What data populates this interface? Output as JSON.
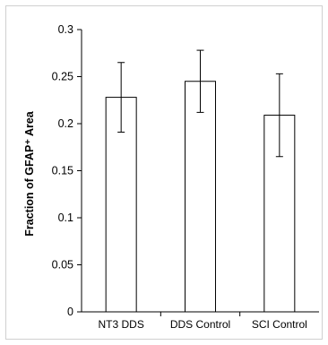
{
  "chart_data": {
    "type": "bar",
    "ylabel": "Fraction of GFAP⁺ Area",
    "ylim": [
      0,
      0.3
    ],
    "yticks": [
      0,
      0.05,
      0.1,
      0.15,
      0.2,
      0.25,
      0.3
    ],
    "ytick_labels": [
      "0",
      "0.05",
      "0.1",
      "0.15",
      "0.2",
      "0.25",
      "0.3"
    ],
    "categories": [
      "NT3 DDS",
      "DDS Control",
      "SCI Control"
    ],
    "values": [
      0.228,
      0.245,
      0.209
    ],
    "errors": [
      0.037,
      0.033,
      0.044
    ],
    "bar_color": "#ffffff",
    "edge_color": "#000000",
    "grid": false
  }
}
